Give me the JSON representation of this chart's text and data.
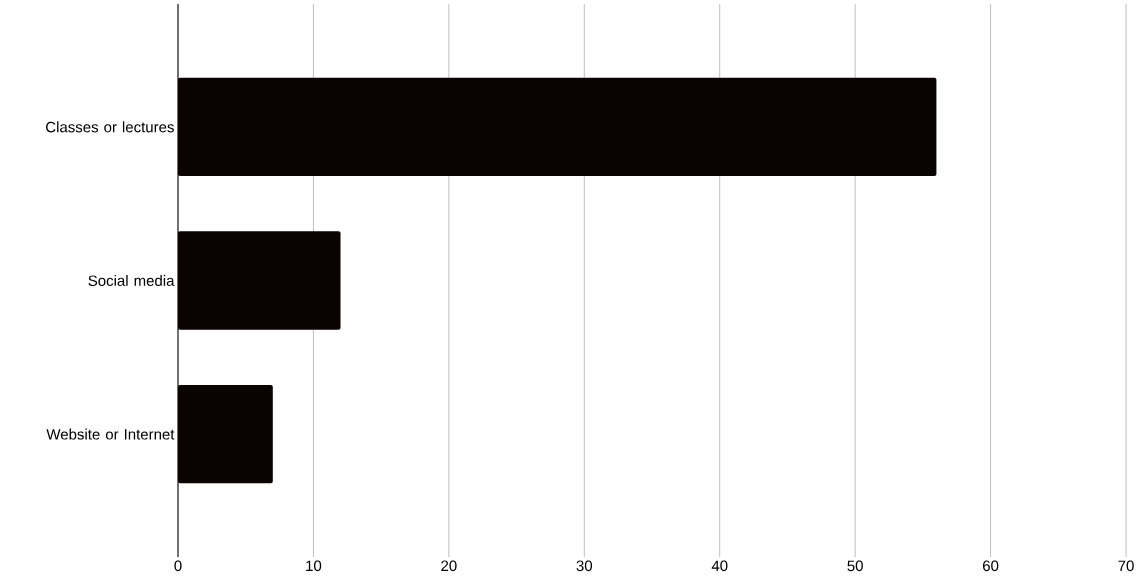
{
  "chart_data": {
    "type": "bar",
    "orientation": "horizontal",
    "categories": [
      "Classes or lectures",
      "Social media",
      "Website or Internet"
    ],
    "values": [
      56,
      12,
      7
    ],
    "color": "#0b0202",
    "xlim": [
      0,
      70
    ],
    "xticks": [
      0,
      10,
      20,
      30,
      40,
      50,
      60,
      70
    ],
    "grid": "x"
  }
}
